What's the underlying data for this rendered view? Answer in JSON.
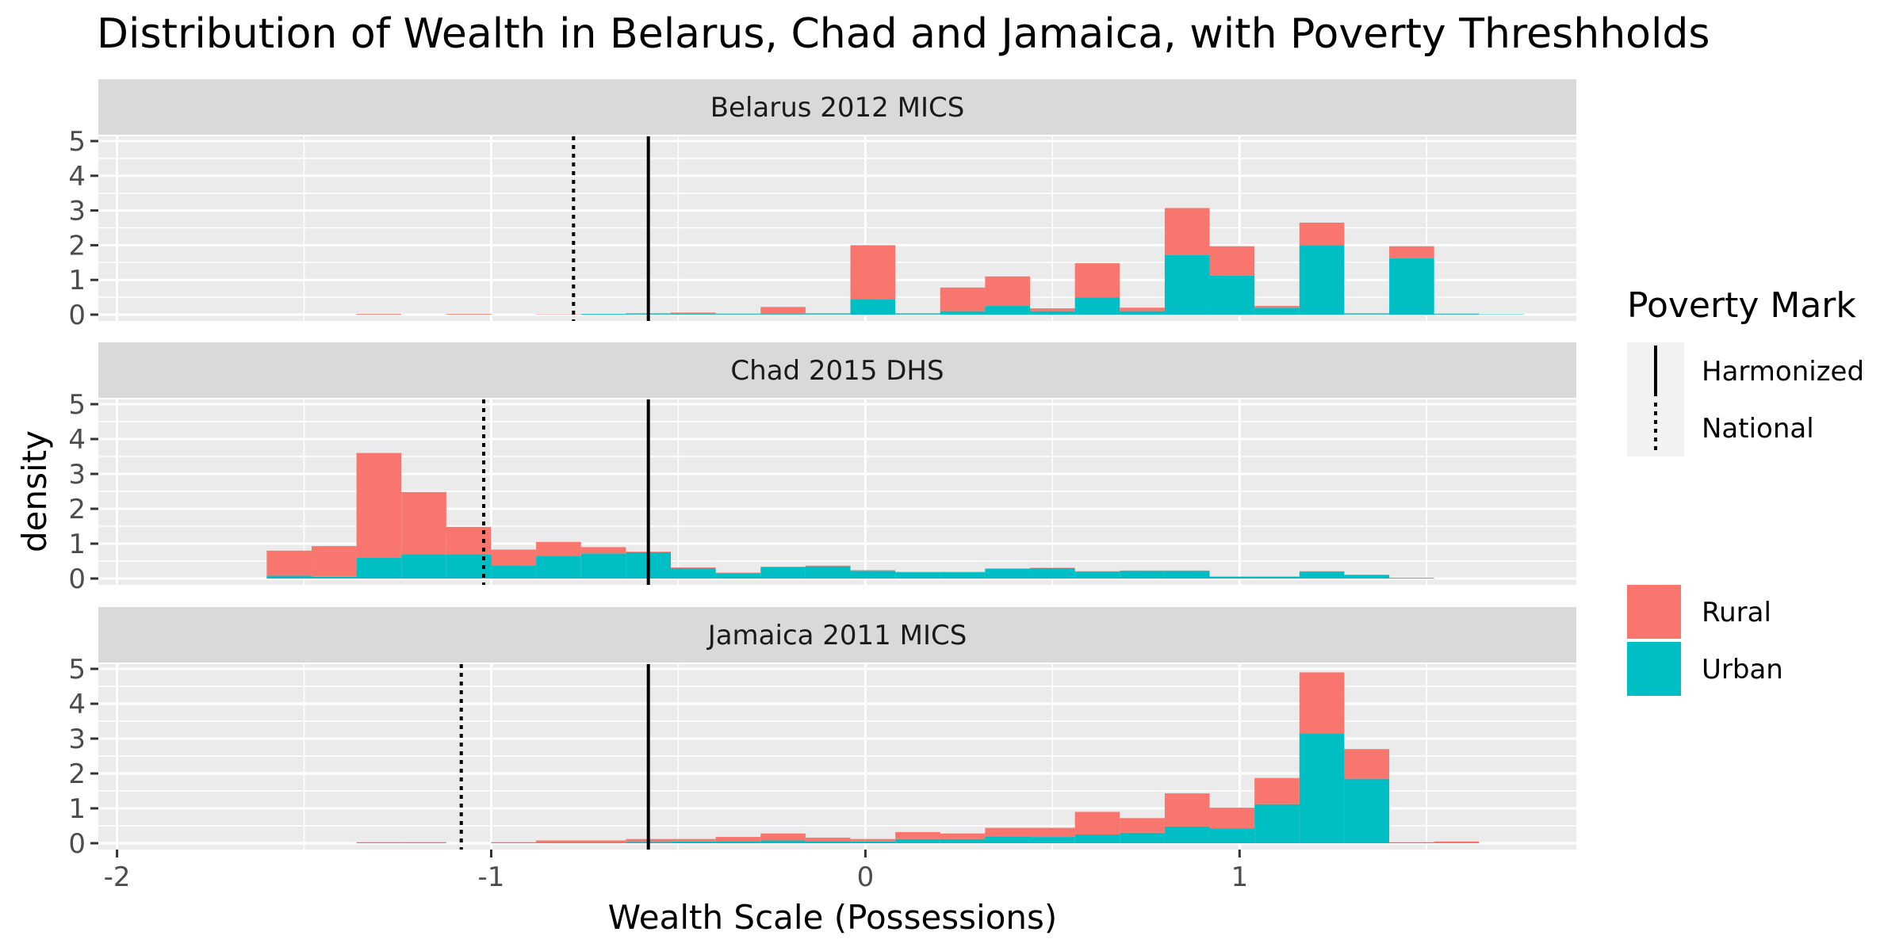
{
  "chart_data": {
    "type": "histogram",
    "title": "Distribution of Wealth in Belarus, Chad and Jamaica, with Poverty Threshholds",
    "xlabel": "Wealth Scale (Possessions)",
    "ylabel": "density",
    "xlim": [
      -2.05,
      1.9
    ],
    "ylim": [
      0,
      5
    ],
    "x_ticks": [
      -2,
      -1,
      0,
      1
    ],
    "y_ticks": [
      0,
      1,
      2,
      3,
      4,
      5
    ],
    "grid": true,
    "stacked": true,
    "bins_start": [
      -1.6,
      -1.48,
      -1.36,
      -1.24,
      -1.12,
      -1.0,
      -0.88,
      -0.76,
      -0.64,
      -0.52,
      -0.4,
      -0.28,
      -0.16,
      -0.04,
      0.08,
      0.2,
      0.32,
      0.44,
      0.56,
      0.68,
      0.8,
      0.92,
      1.04,
      1.16,
      1.28,
      1.4,
      1.52,
      1.64
    ],
    "bin_width": 0.12,
    "panels": [
      {
        "label": "Belarus 2012 MICS",
        "harmonized": -0.58,
        "national": -0.78,
        "urban": [
          0,
          0,
          0,
          0,
          0,
          0,
          0,
          0.02,
          0.02,
          0.02,
          0.02,
          0.02,
          0.02,
          0.45,
          0.02,
          0.1,
          0.25,
          0.1,
          0.5,
          0.1,
          1.72,
          1.12,
          0.2,
          2.0,
          0.02,
          1.62,
          0.02,
          0.01
        ],
        "rural": [
          0,
          0,
          0.02,
          0,
          0.02,
          0,
          0.01,
          0,
          0.02,
          0.04,
          0.01,
          0.2,
          0.02,
          1.55,
          0.02,
          0.68,
          0.85,
          0.08,
          0.98,
          0.1,
          1.35,
          0.85,
          0.05,
          0.65,
          0.02,
          0.35,
          0.01,
          0.0
        ]
      },
      {
        "label": "Chad 2015 DHS",
        "harmonized": -0.58,
        "national": -1.02,
        "urban": [
          0.08,
          0.05,
          0.6,
          0.7,
          0.7,
          0.38,
          0.65,
          0.72,
          0.75,
          0.3,
          0.15,
          0.32,
          0.35,
          0.22,
          0.18,
          0.18,
          0.28,
          0.3,
          0.2,
          0.22,
          0.22,
          0.05,
          0.05,
          0.2,
          0.1,
          0.02,
          0,
          0
        ],
        "rural": [
          0.72,
          0.88,
          3.0,
          1.78,
          0.78,
          0.45,
          0.4,
          0.18,
          0.02,
          0.02,
          0.02,
          0.02,
          0.02,
          0.02,
          0.01,
          0.01,
          0.01,
          0.01,
          0.01,
          0.01,
          0.01,
          0.01,
          0.01,
          0.01,
          0.01,
          0,
          0,
          0
        ]
      },
      {
        "label": "Jamaica 2011 MICS",
        "harmonized": -0.58,
        "national": -1.08,
        "urban": [
          0,
          0,
          0.01,
          0.01,
          0,
          0.01,
          0.02,
          0.02,
          0.04,
          0.05,
          0.06,
          0.08,
          0.06,
          0.05,
          0.12,
          0.12,
          0.2,
          0.18,
          0.25,
          0.3,
          0.48,
          0.42,
          1.12,
          3.15,
          1.85,
          0.02,
          0.01,
          0
        ],
        "rural": [
          0,
          0,
          0.02,
          0.02,
          0,
          0.02,
          0.06,
          0.06,
          0.08,
          0.07,
          0.12,
          0.2,
          0.1,
          0.07,
          0.2,
          0.16,
          0.24,
          0.26,
          0.65,
          0.42,
          0.95,
          0.6,
          0.75,
          1.75,
          0.85,
          0.01,
          0.04,
          0
        ]
      }
    ],
    "legend": {
      "line_title": "Poverty Mark",
      "line_items": [
        {
          "name": "Harmonized",
          "style": "solid"
        },
        {
          "name": "National",
          "style": "dotted"
        }
      ],
      "fill_items": [
        {
          "name": "Rural",
          "color": "#F8766D"
        },
        {
          "name": "Urban",
          "color": "#00BFC4"
        }
      ],
      "placement": "right"
    }
  }
}
